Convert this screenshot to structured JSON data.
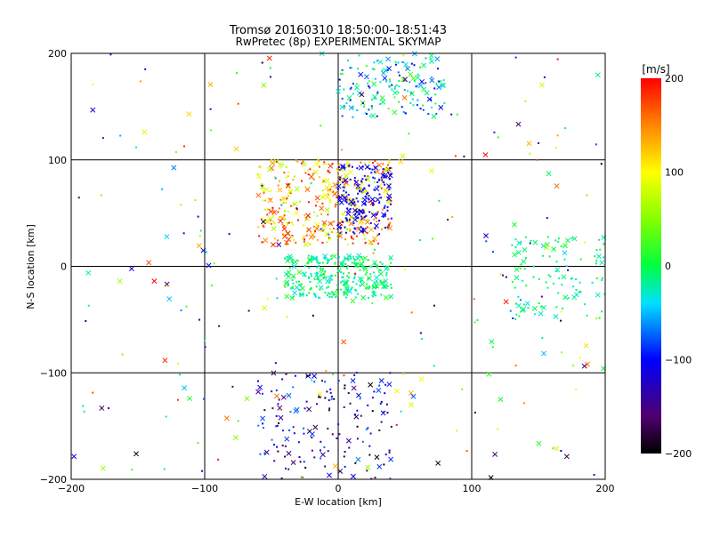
{
  "chart_data": {
    "type": "scatter",
    "title": "Tromsø 20160310 18:50:00–18:51:43",
    "subtitle": "RwPretec (8p) EXPERIMENTAL SKYMAP",
    "xlabel": "E-W location [km]",
    "ylabel": "N-S location [km]",
    "xlim": [
      -200,
      200
    ],
    "ylim": [
      -200,
      200
    ],
    "x_ticks": [
      -200,
      -100,
      0,
      100,
      200
    ],
    "y_ticks": [
      -200,
      -100,
      0,
      100,
      200
    ],
    "grid": true,
    "colorbar": {
      "label": "[m/s]",
      "range": [
        -200,
        200
      ],
      "ticks": [
        200,
        100,
        0,
        -100,
        -200
      ],
      "colormap": "rainbow (black-purple-blue-cyan-green-yellow-red)"
    },
    "markers": {
      "meteor": "x",
      "point": "dot"
    },
    "clusters": [
      {
        "region": "upper-center",
        "x_range": [
          0,
          80
        ],
        "y_range": [
          140,
          200
        ],
        "v_range": [
          -120,
          40
        ]
      },
      {
        "region": "north-center",
        "x_range": [
          -60,
          40
        ],
        "y_range": [
          20,
          100
        ],
        "v_range": [
          60,
          200
        ]
      },
      {
        "region": "blue-core",
        "x_range": [
          0,
          40
        ],
        "y_range": [
          30,
          95
        ],
        "v_range": [
          -130,
          -90
        ]
      },
      {
        "region": "east-stream",
        "x_range": [
          130,
          200
        ],
        "y_range": [
          -50,
          30
        ],
        "v_range": [
          -40,
          10
        ]
      },
      {
        "region": "center-band",
        "x_range": [
          -40,
          40
        ],
        "y_range": [
          -30,
          10
        ],
        "v_range": [
          -40,
          20
        ]
      },
      {
        "region": "south-column",
        "x_range": [
          -60,
          40
        ],
        "y_range": [
          -200,
          -100
        ],
        "v_range": [
          -200,
          -60
        ]
      }
    ]
  }
}
